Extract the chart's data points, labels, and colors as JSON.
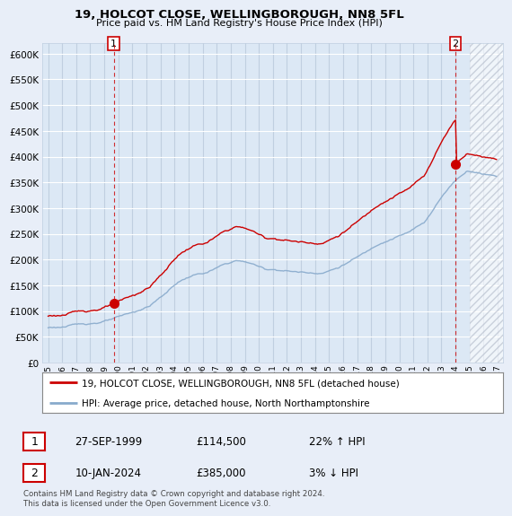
{
  "title_line1": "19, HOLCOT CLOSE, WELLINGBOROUGH, NN8 5FL",
  "title_line2": "Price paid vs. HM Land Registry's House Price Index (HPI)",
  "background_color": "#e8eef8",
  "plot_bg_color": "#dce8f5",
  "grid_color": "#c8d8ec",
  "red_line_color": "#cc0000",
  "blue_line_color": "#88aacc",
  "sale1_date": "27-SEP-1999",
  "sale1_price": 114500,
  "sale2_date": "10-JAN-2024",
  "sale2_price": 385000,
  "sale1_hpi_pct": "22% ↑ HPI",
  "sale2_hpi_pct": "3% ↓ HPI",
  "legend_line1": "19, HOLCOT CLOSE, WELLINGBOROUGH, NN8 5FL (detached house)",
  "legend_line2": "HPI: Average price, detached house, North Northamptonshire",
  "footer": "Contains HM Land Registry data © Crown copyright and database right 2024.\nThis data is licensed under the Open Government Licence v3.0.",
  "ylim": [
    0,
    620000
  ],
  "yticks": [
    0,
    50000,
    100000,
    150000,
    200000,
    250000,
    300000,
    350000,
    400000,
    450000,
    500000,
    550000,
    600000
  ]
}
